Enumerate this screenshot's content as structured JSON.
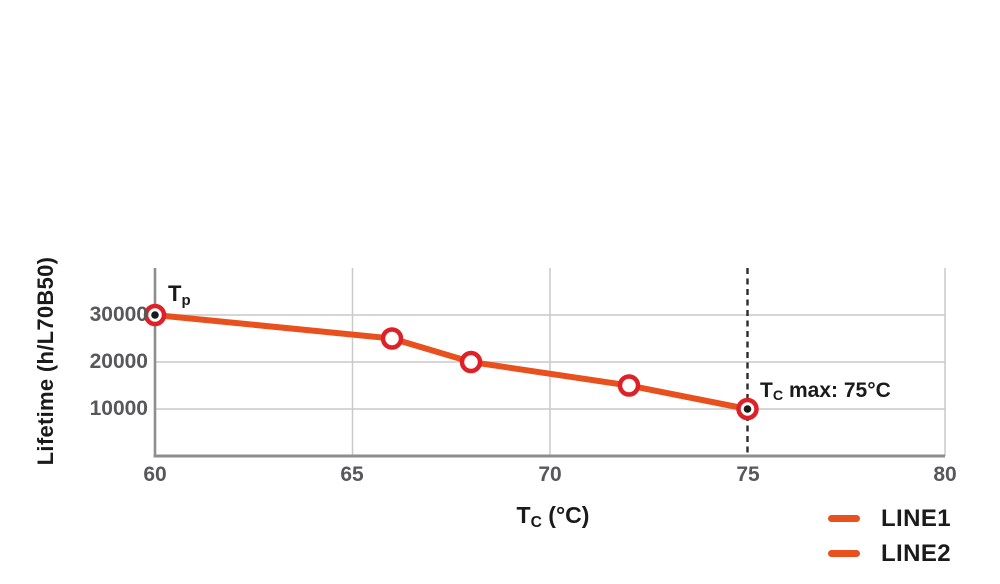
{
  "colors": {
    "background": "#FFFFFF",
    "line": "#E8501E",
    "marker_ring": "#DE2127",
    "marker_fill": "#FFFFFF",
    "endpoint_dot": "#1A1A1A",
    "grid": "#C9C9C9",
    "axis": "#8E8E8E",
    "tick_text": "#57585A",
    "label_text": "#1A1A1A",
    "dashed_line": "#2B2B2B"
  },
  "chart_data": {
    "type": "line",
    "title": "",
    "xlabel_main": "T",
    "xlabel_sub": "C",
    "xlabel_rest": " (°C)",
    "ylabel": "Lifetime (h/L70B50)",
    "xlim": [
      60,
      80
    ],
    "ylim": [
      0,
      40000
    ],
    "grid": true,
    "xticks": [
      {
        "value": 60,
        "label": "60"
      },
      {
        "value": 65,
        "label": "65"
      },
      {
        "value": 70,
        "label": "70"
      },
      {
        "value": 75,
        "label": "75"
      },
      {
        "value": 80,
        "label": "80"
      }
    ],
    "yticks": [
      {
        "value": 30000,
        "label": "30000"
      },
      {
        "value": 20000,
        "label": "20000"
      },
      {
        "value": 10000,
        "label": "10000"
      }
    ],
    "x_gridlines": [
      65,
      70,
      80
    ],
    "y_gridlines": [
      10000,
      20000,
      30000
    ],
    "annotation_line": {
      "axis": "x",
      "value": 75,
      "style": "dashed"
    },
    "series": [
      {
        "name": "LINE1",
        "points": [
          {
            "x": 60,
            "y": 30000
          },
          {
            "x": 66,
            "y": 25000
          },
          {
            "x": 68,
            "y": 20000
          },
          {
            "x": 72,
            "y": 15000
          },
          {
            "x": 75,
            "y": 10000
          }
        ],
        "marker": "open-circle",
        "endpoint_dot_indices": [
          0,
          4
        ]
      }
    ],
    "annotations": [
      {
        "id": "tp",
        "main": "T",
        "sub": "p",
        "rest": "",
        "x": 60,
        "y": 30000
      },
      {
        "id": "tc-max",
        "main": "T",
        "sub": "C",
        "rest": " max: 75°C",
        "x": 75,
        "y": 10000
      }
    ],
    "legend": {
      "position": "bottom-right",
      "entries": [
        {
          "label": "LINE1",
          "color": "#E8501E"
        },
        {
          "label": "LINE2",
          "color": "#E8501E"
        }
      ]
    }
  }
}
